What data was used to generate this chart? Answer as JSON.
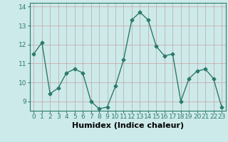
{
  "x": [
    0,
    1,
    2,
    3,
    4,
    5,
    6,
    7,
    8,
    9,
    10,
    11,
    12,
    13,
    14,
    15,
    16,
    17,
    18,
    19,
    20,
    21,
    22,
    23
  ],
  "y": [
    11.5,
    12.1,
    9.4,
    9.7,
    10.5,
    10.7,
    10.5,
    9.0,
    8.6,
    8.7,
    9.8,
    11.2,
    13.3,
    13.7,
    13.3,
    11.9,
    11.4,
    11.5,
    9.0,
    10.2,
    10.6,
    10.7,
    10.2,
    8.7
  ],
  "line_color": "#2d7a6a",
  "marker": "D",
  "marker_size": 2.5,
  "linewidth": 1.0,
  "bg_color": "#cceaea",
  "grid_color": "#b0c8c8",
  "xlabel": "Humidex (Indice chaleur)",
  "xlabel_fontsize": 8,
  "ylim": [
    8.5,
    14.2
  ],
  "yticks": [
    9,
    10,
    11,
    12,
    13,
    14
  ],
  "xticks": [
    0,
    1,
    2,
    3,
    4,
    5,
    6,
    7,
    8,
    9,
    10,
    11,
    12,
    13,
    14,
    15,
    16,
    17,
    18,
    19,
    20,
    21,
    22,
    23
  ],
  "tick_fontsize": 6.5
}
